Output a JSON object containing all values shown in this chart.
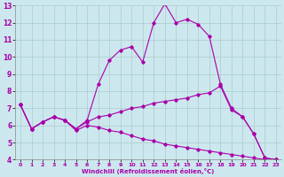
{
  "background_color": "#cce8ee",
  "line_color": "#aa00aa",
  "grid_color": "#aacccc",
  "xlabel": "Windchill (Refroidissement éolien,°C)",
  "xlim": [
    -0.5,
    23.5
  ],
  "ylim": [
    4,
    13
  ],
  "yticks": [
    4,
    5,
    6,
    7,
    8,
    9,
    10,
    11,
    12,
    13
  ],
  "xticks": [
    0,
    1,
    2,
    3,
    4,
    5,
    6,
    7,
    8,
    9,
    10,
    11,
    12,
    13,
    14,
    15,
    16,
    17,
    18,
    19,
    20,
    21,
    22,
    23
  ],
  "line1_x": [
    0,
    1,
    2,
    3,
    4,
    5,
    6,
    7,
    8,
    9,
    10,
    11,
    12,
    13,
    14,
    15,
    16,
    17,
    18,
    19,
    20,
    21,
    22,
    23
  ],
  "line1_y": [
    7.2,
    5.8,
    6.2,
    6.5,
    6.3,
    5.8,
    6.3,
    8.4,
    9.8,
    10.4,
    10.6,
    9.7,
    12.0,
    13.1,
    12.0,
    12.2,
    11.9,
    11.2,
    8.4,
    7.0,
    6.5,
    5.5,
    4.1,
    4.0
  ],
  "line2_x": [
    0,
    1,
    2,
    3,
    4,
    5,
    6,
    7,
    8,
    9,
    10,
    11,
    12,
    13,
    14,
    15,
    16,
    17,
    18,
    19,
    20,
    21,
    22,
    23
  ],
  "line2_y": [
    7.2,
    5.8,
    6.2,
    6.5,
    6.3,
    5.8,
    6.2,
    6.5,
    6.6,
    6.8,
    7.0,
    7.1,
    7.3,
    7.4,
    7.5,
    7.6,
    7.8,
    7.9,
    8.3,
    6.9,
    6.5,
    5.5,
    4.1,
    4.0
  ],
  "line3_x": [
    0,
    1,
    2,
    3,
    4,
    5,
    6,
    7,
    8,
    9,
    10,
    11,
    12,
    13,
    14,
    15,
    16,
    17,
    18,
    19,
    20,
    21,
    22,
    23
  ],
  "line3_y": [
    7.2,
    5.8,
    6.2,
    6.5,
    6.3,
    5.7,
    6.0,
    5.9,
    5.7,
    5.6,
    5.4,
    5.2,
    5.1,
    4.9,
    4.8,
    4.7,
    4.6,
    4.5,
    4.4,
    4.3,
    4.2,
    4.1,
    4.0,
    4.0
  ]
}
